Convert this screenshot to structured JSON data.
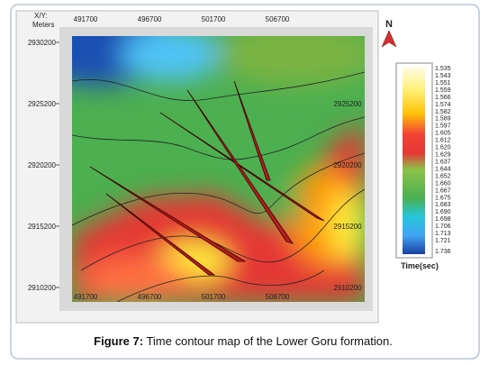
{
  "axis_header": [
    "X/Y:",
    "Meters"
  ],
  "x_ticks": [
    "491700",
    "496700",
    "501700",
    "506700"
  ],
  "y_ticks": [
    "2930200",
    "2925200",
    "2920200",
    "2915200",
    "2910200"
  ],
  "north": "N",
  "legend": {
    "labels": [
      "1.535",
      "1.543",
      "1.551",
      "1.559",
      "1.566",
      "1.574",
      "1.582",
      "1.589",
      "1.597",
      "1.605",
      "1.612",
      "1.620",
      "1.629",
      "1.637",
      "1.644",
      "1.652",
      "1.660",
      "1.667",
      "1.675",
      "1.683",
      "1.690",
      "1.698",
      "1.706",
      "1.713",
      "1.721",
      "1.736"
    ],
    "title": "Time(sec)"
  },
  "caption": {
    "label": "Figure 7:",
    "text": "Time contour map of the Lower Goru formation."
  }
}
